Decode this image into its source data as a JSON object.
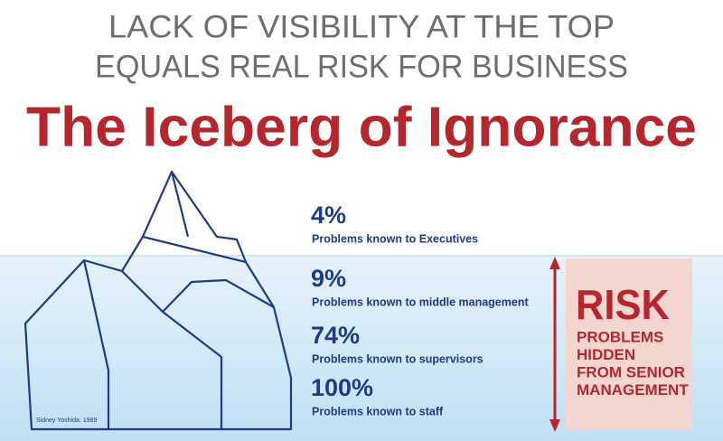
{
  "header": {
    "line1": "LACK OF VISIBILITY AT THE TOP",
    "line2": "EQUALS REAL RISK FOR BUSINESS",
    "title": "The Iceberg of Ignorance"
  },
  "levels": [
    {
      "percent": "4%",
      "label": "Problems known to Executives"
    },
    {
      "percent": "9%",
      "label": "Problems known to middle management"
    },
    {
      "percent": "74%",
      "label": "Problems known to supervisors"
    },
    {
      "percent": "100%",
      "label": "Problems known to staff"
    }
  ],
  "risk": {
    "title": "RISK",
    "lines": [
      "PROBLEMS",
      "HIDDEN",
      "FROM SENIOR",
      "MANAGEMENT"
    ]
  },
  "credit": "Sidney Yoshida: 1989"
}
